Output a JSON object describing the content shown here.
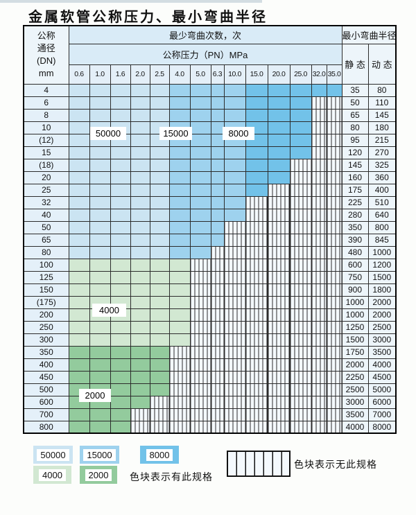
{
  "page": {
    "title": "金属软管公称压力、最小弯曲半径"
  },
  "colors": {
    "blue_light": "#cbe4f2",
    "blue_mid": "#9ed2ee",
    "blue_dark": "#72c2e9",
    "green_light": "#d2e8d2",
    "green_mid": "#93cb9d",
    "header_blue": "#d9ebf7",
    "pn_cell": "#e4eff8",
    "dn_cell": "#e4f0f9",
    "value_cell": "#edf5fa",
    "stripe_bg": "#f4f9fd"
  },
  "table": {
    "header": {
      "dn_lines": [
        "公称",
        "通径",
        "(DN)",
        "mm"
      ],
      "bend_cycles": "最少弯曲次数，次",
      "pressure": "公称压力（PN）MPa",
      "radius": "最小弯曲半径",
      "static_label": "静 态",
      "dynamic_label": "动 态"
    },
    "pressure_columns": [
      "0.6",
      "1.0",
      "1.6",
      "2.0",
      "2.5",
      "4.0",
      "5.0",
      "6.3",
      "10.0",
      "15.0",
      "20.0",
      "25.0",
      "32.0",
      "35.0"
    ],
    "rows": [
      {
        "dn": "4",
        "band": "blue",
        "colored_through": "35.0",
        "static": "35",
        "dynamic": "80"
      },
      {
        "dn": "6",
        "band": "blue",
        "colored_through": "25.0",
        "static": "50",
        "dynamic": "110"
      },
      {
        "dn": "8",
        "band": "blue",
        "colored_through": "25.0",
        "static": "65",
        "dynamic": "145"
      },
      {
        "dn": "10",
        "band": "blue",
        "colored_through": "25.0",
        "static": "80",
        "dynamic": "180"
      },
      {
        "dn": "(12)",
        "band": "blue",
        "colored_through": "25.0",
        "static": "95",
        "dynamic": "215"
      },
      {
        "dn": "15",
        "band": "blue",
        "colored_through": "25.0",
        "static": "120",
        "dynamic": "270"
      },
      {
        "dn": "(18)",
        "band": "blue",
        "colored_through": "20.0",
        "static": "145",
        "dynamic": "325"
      },
      {
        "dn": "20",
        "band": "blue",
        "colored_through": "20.0",
        "static": "160",
        "dynamic": "360"
      },
      {
        "dn": "25",
        "band": "blue",
        "colored_through": "15.0",
        "static": "175",
        "dynamic": "400"
      },
      {
        "dn": "32",
        "band": "blue",
        "colored_through": "10.0",
        "static": "225",
        "dynamic": "510"
      },
      {
        "dn": "40",
        "band": "blue",
        "colored_through": "10.0",
        "static": "280",
        "dynamic": "640"
      },
      {
        "dn": "50",
        "band": "blue",
        "colored_through": "6.3",
        "static": "350",
        "dynamic": "800"
      },
      {
        "dn": "65",
        "band": "blue",
        "colored_through": "6.3",
        "static": "390",
        "dynamic": "845"
      },
      {
        "dn": "80",
        "band": "blue",
        "colored_through": "5.0",
        "static": "480",
        "dynamic": "1000"
      },
      {
        "dn": "100",
        "band": "green-4000",
        "colored_through": "4.0",
        "static": "600",
        "dynamic": "1200"
      },
      {
        "dn": "125",
        "band": "green-4000",
        "colored_through": "4.0",
        "static": "750",
        "dynamic": "1500"
      },
      {
        "dn": "150",
        "band": "green-4000",
        "colored_through": "4.0",
        "static": "900",
        "dynamic": "1800"
      },
      {
        "dn": "(175)",
        "band": "green-4000",
        "colored_through": "4.0",
        "static": "1000",
        "dynamic": "2000"
      },
      {
        "dn": "200",
        "band": "green-4000",
        "colored_through": "4.0",
        "static": "1000",
        "dynamic": "2000"
      },
      {
        "dn": "250",
        "band": "green-4000",
        "colored_through": "4.0",
        "static": "1250",
        "dynamic": "2500"
      },
      {
        "dn": "300",
        "band": "green-4000",
        "colored_through": "4.0",
        "static": "1500",
        "dynamic": "3000"
      },
      {
        "dn": "350",
        "band": "green-2000",
        "colored_through": "2.5",
        "static": "1750",
        "dynamic": "3500"
      },
      {
        "dn": "400",
        "band": "green-2000",
        "colored_through": "2.5",
        "static": "2000",
        "dynamic": "4000"
      },
      {
        "dn": "450",
        "band": "green-2000",
        "colored_through": "2.5",
        "static": "2250",
        "dynamic": "4500"
      },
      {
        "dn": "500",
        "band": "green-2000",
        "colored_through": "2.5",
        "static": "2500",
        "dynamic": "5000"
      },
      {
        "dn": "600",
        "band": "green-2000",
        "colored_through": "2.0",
        "static": "3000",
        "dynamic": "6000"
      },
      {
        "dn": "700",
        "band": "green-2000",
        "colored_through": "1.6",
        "static": "3500",
        "dynamic": "7000"
      },
      {
        "dn": "800",
        "band": "green-2000",
        "colored_through": "1.6",
        "static": "4000",
        "dynamic": "8000"
      }
    ],
    "shade_bands": {
      "blue_light_columns": "0.6–2.5 = 50000 次",
      "blue_mid_columns": "4.0–10.0 = 15000 次",
      "blue_dark_columns": "15.0–35.0 = 8000 次"
    }
  },
  "callouts": [
    {
      "label": "50000"
    },
    {
      "label": "15000"
    },
    {
      "label": "8000"
    },
    {
      "label": "4000"
    },
    {
      "label": "2000"
    }
  ],
  "legend": {
    "items": [
      {
        "label": "50000"
      },
      {
        "label": "15000"
      },
      {
        "label": "8000"
      },
      {
        "label": "4000"
      },
      {
        "label": "2000"
      }
    ],
    "has_spec_text": "色块表示有此规格",
    "no_spec_text": "色块表示无此规格"
  }
}
